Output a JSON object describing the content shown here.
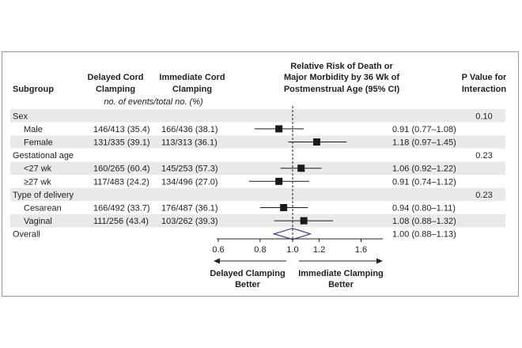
{
  "chart_data": {
    "type": "forest",
    "columns": {
      "subgroup": "Subgroup",
      "delayed": [
        "Delayed Cord",
        "Clamping"
      ],
      "immediate": [
        "Immediate Cord",
        "Clamping"
      ],
      "events_note": "no. of events/total no. (%)",
      "rr": [
        "Relative Risk of Death or",
        "Major Morbidity by 36 Wk of",
        "Postmenstrual Age (95% CI)"
      ],
      "p": [
        "P Value for",
        "Interaction"
      ]
    },
    "rows": [
      {
        "label": "Sex",
        "kind": "category",
        "shaded": true,
        "p_value": "0.10"
      },
      {
        "label": "Male",
        "kind": "item",
        "shaded": false,
        "delayed": "146/413 (35.4)",
        "immediate": "166/436 (38.1)",
        "rr": 0.91,
        "lo": 0.77,
        "hi": 1.08,
        "rr_text": "0.91 (0.77–1.08)"
      },
      {
        "label": "Female",
        "kind": "item",
        "shaded": true,
        "delayed": "131/335 (39.1)",
        "immediate": "113/313 (36.1)",
        "rr": 1.18,
        "lo": 0.97,
        "hi": 1.45,
        "rr_text": "1.18 (0.97–1.45)"
      },
      {
        "label": "Gestational age",
        "kind": "category",
        "shaded": false,
        "p_value": "0.23"
      },
      {
        "label": "<27 wk",
        "kind": "item",
        "shaded": true,
        "delayed": "160/265 (60.4)",
        "immediate": "145/253 (57.3)",
        "rr": 1.06,
        "lo": 0.92,
        "hi": 1.22,
        "rr_text": "1.06 (0.92–1.22)"
      },
      {
        "label": "≥27 wk",
        "kind": "item",
        "shaded": false,
        "delayed": "117/483 (24.2)",
        "immediate": "134/496 (27.0)",
        "rr": 0.91,
        "lo": 0.74,
        "hi": 1.12,
        "rr_text": "0.91 (0.74–1.12)"
      },
      {
        "label": "Type of delivery",
        "kind": "category",
        "shaded": true,
        "p_value": "0.23"
      },
      {
        "label": "Cesarean",
        "kind": "item",
        "shaded": false,
        "delayed": "166/492 (33.7)",
        "immediate": "176/487 (36.1)",
        "rr": 0.94,
        "lo": 0.8,
        "hi": 1.11,
        "rr_text": "0.94 (0.80–1.11)"
      },
      {
        "label": "Vaginal",
        "kind": "item",
        "shaded": true,
        "delayed": "111/256 (43.4)",
        "immediate": "103/262 (39.3)",
        "rr": 1.08,
        "lo": 0.88,
        "hi": 1.32,
        "rr_text": "1.08 (0.88–1.32)"
      },
      {
        "label": "Overall",
        "kind": "overall",
        "shaded": false,
        "rr": 1.0,
        "lo": 0.88,
        "hi": 1.13,
        "rr_text": "1.00 (0.88–1.13)"
      }
    ],
    "x_ticks": [
      0.6,
      0.8,
      1.0,
      1.2,
      1.6
    ],
    "x_tick_labels": [
      "0.6",
      "0.8",
      "1.0",
      "1.2",
      "1.6"
    ],
    "reference_line": 1.0,
    "favors_left": [
      "Delayed Clamping",
      "Better"
    ],
    "favors_right": [
      "Immediate Clamping",
      "Better"
    ],
    "colors": {
      "shade": "#e9e9e9",
      "marker": "#1a1a1a",
      "overall_diamond": "#3a3f8f",
      "frame": "#9a9a9a"
    }
  }
}
